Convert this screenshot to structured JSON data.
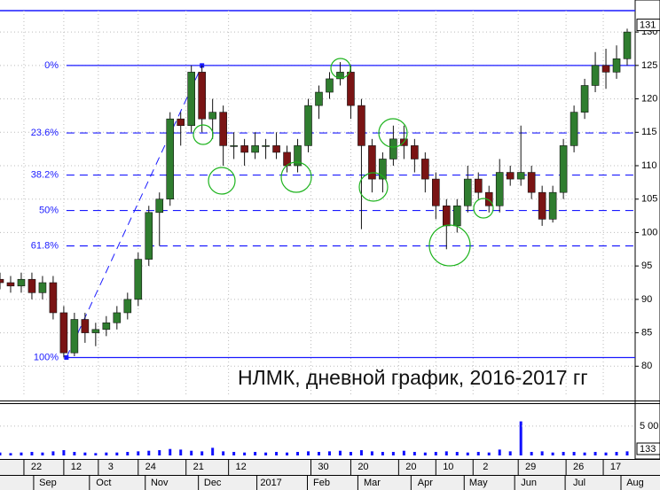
{
  "chart_data": {
    "type": "candlestick",
    "title": "НЛМК, дневной график, 2016-2017 гг",
    "x": [
      0,
      4,
      8,
      12,
      16,
      20,
      24,
      28,
      32,
      36,
      40,
      44,
      48,
      52,
      56,
      60,
      64,
      68,
      72,
      76,
      80,
      84,
      88,
      92,
      96,
      100,
      104,
      108,
      112,
      116,
      120,
      124,
      128,
      132,
      136,
      140,
      144,
      148,
      152,
      156,
      160,
      164,
      168,
      172,
      176,
      180,
      184,
      188,
      192,
      196,
      200,
      204,
      208,
      212,
      216,
      220,
      224,
      228,
      232,
      236
    ],
    "open": [
      93,
      92.5,
      92,
      93,
      91,
      92.5,
      88,
      82,
      87,
      85,
      85.5,
      86.5,
      88,
      90,
      96,
      103,
      105,
      117,
      116,
      124,
      117,
      118,
      113,
      113,
      112,
      113,
      113,
      112,
      110,
      113,
      119,
      121,
      123,
      124,
      119,
      113,
      108,
      111,
      114,
      113,
      111,
      108,
      104,
      101,
      104,
      108,
      106,
      104,
      109,
      108,
      109,
      106,
      102,
      106,
      113,
      118,
      122,
      125,
      124,
      126
    ],
    "high": [
      94,
      93.5,
      94,
      94,
      93.5,
      93.5,
      89,
      88,
      88,
      86.5,
      87.5,
      89,
      91,
      97,
      104,
      106,
      118,
      118,
      125,
      125,
      120,
      119,
      115,
      114,
      115,
      114,
      115,
      113,
      114,
      120,
      122,
      124,
      125.5,
      125,
      120,
      114,
      112,
      116,
      116,
      114,
      112,
      109,
      105,
      105,
      110,
      109,
      107,
      111,
      110,
      116,
      110,
      107,
      107,
      114,
      119,
      123,
      127,
      127.5,
      128,
      130.5
    ],
    "low": [
      91.5,
      91,
      91,
      90,
      90,
      87,
      81.3,
      81.5,
      83.5,
      83,
      84.5,
      85.5,
      87,
      89,
      95,
      98,
      104,
      113,
      115,
      115,
      114,
      110,
      111,
      110,
      111,
      111,
      111,
      109,
      109,
      112,
      117,
      120,
      122,
      117,
      100.5,
      106,
      106,
      110,
      111,
      109,
      106,
      102,
      97.5,
      100,
      103,
      105,
      103,
      103,
      107,
      107,
      105,
      101,
      101.5,
      105,
      112,
      117,
      121,
      121.5,
      123,
      125
    ],
    "close": [
      92.5,
      92,
      93,
      91,
      92.5,
      88,
      82,
      87,
      85,
      85.5,
      86.5,
      88,
      90,
      96,
      103,
      105,
      117,
      116,
      124,
      117,
      118,
      113,
      113,
      112,
      113,
      113,
      112,
      110,
      113,
      119,
      121,
      123,
      124,
      119,
      113,
      108,
      111,
      114,
      113,
      111,
      108,
      104,
      101,
      104,
      108,
      106,
      104,
      109,
      108,
      109,
      106,
      102,
      106,
      113,
      118,
      122,
      125,
      124,
      126,
      130
    ],
    "volume": [
      0.5,
      0.4,
      0.5,
      0.6,
      0.5,
      0.7,
      0.9,
      0.6,
      0.5,
      0.4,
      0.5,
      0.5,
      0.6,
      0.7,
      0.8,
      0.9,
      1.1,
      1.0,
      0.8,
      0.7,
      1.3,
      0.7,
      0.6,
      0.5,
      0.6,
      0.5,
      0.6,
      0.5,
      0.6,
      0.7,
      0.6,
      0.7,
      0.8,
      0.6,
      0.9,
      0.7,
      0.6,
      0.6,
      0.8,
      0.6,
      0.5,
      0.6,
      0.7,
      0.6,
      0.5,
      0.6,
      0.5,
      1.0,
      0.7,
      5.8,
      0.6,
      0.7,
      0.5,
      0.6,
      0.6,
      0.5,
      0.6,
      0.5,
      0.6,
      0.7
    ],
    "up_color": "#2f7d2f",
    "down_color": "#7a1414",
    "volume_color": "#1010ff",
    "xlim": [
      0,
      239
    ],
    "ylim": [
      75.4,
      133.2
    ],
    "yticks": [
      80,
      85,
      90,
      95,
      100,
      105,
      110,
      115,
      120,
      125,
      130
    ],
    "volume_ylim": [
      0,
      8.6
    ],
    "volume_yticks": [
      {
        "value": 5,
        "label": "5 00"
      }
    ],
    "volume_last_label": "133",
    "price_marker": 131,
    "xticks": [
      {
        "value": 9,
        "label": "22"
      },
      {
        "value": 24,
        "label": "12"
      },
      {
        "value": 37,
        "label": "3"
      },
      {
        "value": 52,
        "label": "24"
      },
      {
        "value": 70,
        "label": "21"
      },
      {
        "value": 86,
        "label": "12"
      },
      {
        "value": 117,
        "label": "30"
      },
      {
        "value": 132,
        "label": "20"
      },
      {
        "value": 150,
        "label": "20"
      },
      {
        "value": 164,
        "label": "10"
      },
      {
        "value": 178,
        "label": "2"
      },
      {
        "value": 195,
        "label": "29"
      },
      {
        "value": 213,
        "label": "26"
      },
      {
        "value": 227,
        "label": "17"
      }
    ],
    "month_ticks": [
      {
        "value": 18,
        "label": "Sep"
      },
      {
        "value": 39,
        "label": "Oct"
      },
      {
        "value": 60,
        "label": "Nov"
      },
      {
        "value": 80,
        "label": "Dec"
      },
      {
        "value": 102,
        "label": "2017"
      },
      {
        "value": 121,
        "label": "Feb"
      },
      {
        "value": 140,
        "label": "Mar"
      },
      {
        "value": 160,
        "label": "Apr"
      },
      {
        "value": 180,
        "label": "May"
      },
      {
        "value": 199,
        "label": "Jun"
      },
      {
        "value": 218,
        "label": "Jul"
      },
      {
        "value": 239,
        "label": "Aug"
      }
    ],
    "grid": true,
    "fib_color": "#1a1aff",
    "fib_x": [
      25,
      76
    ],
    "fib_levels": [
      {
        "label": "0%",
        "value": 125
      },
      {
        "label": "23.6%",
        "value": 114.9
      },
      {
        "label": "38.2%",
        "value": 108.6
      },
      {
        "label": "50%",
        "value": 103.3
      },
      {
        "label": "61.8%",
        "value": 98
      },
      {
        "label": "100%",
        "value": 81.3
      }
    ]
  }
}
